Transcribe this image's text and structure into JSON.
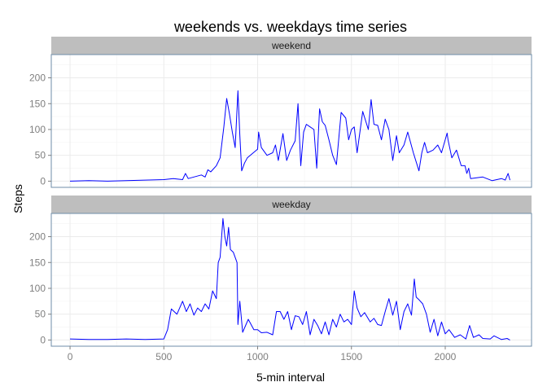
{
  "chart_data": {
    "type": "line",
    "title": "weekends vs. weekdays time series",
    "xlabel": "5-min interval",
    "ylabel": "Steps",
    "xlim": [
      -100,
      2460
    ],
    "ylim": [
      -12,
      245
    ],
    "x_ticks": [
      0,
      500,
      1000,
      1500,
      2000
    ],
    "y_ticks": [
      0,
      50,
      100,
      150,
      200
    ],
    "grid": true,
    "legend": "none",
    "colors": {
      "line": "#0000ff",
      "strip_bg": "#bebebe",
      "panel_border": "#6f8ea8",
      "grid": "#ebebeb"
    },
    "panels": [
      {
        "strip_label": "weekend",
        "series": {
          "x": [
            0,
            100,
            200,
            300,
            400,
            500,
            550,
            600,
            615,
            630,
            700,
            720,
            735,
            750,
            780,
            800,
            810,
            820,
            835,
            850,
            865,
            880,
            895,
            905,
            915,
            930,
            945,
            1000,
            1005,
            1020,
            1050,
            1080,
            1095,
            1110,
            1135,
            1155,
            1175,
            1200,
            1215,
            1230,
            1245,
            1260,
            1280,
            1300,
            1315,
            1330,
            1345,
            1360,
            1380,
            1400,
            1420,
            1445,
            1470,
            1485,
            1500,
            1515,
            1530,
            1560,
            1590,
            1605,
            1620,
            1640,
            1660,
            1680,
            1700,
            1720,
            1740,
            1755,
            1780,
            1800,
            1830,
            1860,
            1875,
            1890,
            1905,
            1935,
            1960,
            1980,
            2010,
            2015,
            2035,
            2060,
            2085,
            2105,
            2115,
            2125,
            2135,
            2200,
            2250,
            2300,
            2320,
            2335,
            2345
          ],
          "y": [
            0,
            1,
            0,
            1,
            2,
            3,
            5,
            3,
            15,
            5,
            12,
            8,
            22,
            18,
            30,
            45,
            75,
            105,
            160,
            130,
            95,
            65,
            175,
            90,
            20,
            35,
            45,
            62,
            95,
            65,
            50,
            55,
            70,
            40,
            92,
            40,
            60,
            78,
            150,
            30,
            95,
            110,
            105,
            100,
            25,
            140,
            115,
            108,
            80,
            50,
            32,
            133,
            122,
            80,
            100,
            105,
            55,
            135,
            100,
            158,
            110,
            108,
            80,
            120,
            100,
            40,
            88,
            55,
            70,
            95,
            55,
            20,
            55,
            75,
            55,
            60,
            70,
            55,
            93,
            80,
            45,
            60,
            30,
            30,
            15,
            25,
            5,
            8,
            1,
            5,
            2,
            15,
            2
          ]
        }
      },
      {
        "strip_label": "weekday",
        "series": {
          "x": [
            0,
            100,
            200,
            300,
            400,
            500,
            520,
            530,
            540,
            570,
            600,
            620,
            640,
            660,
            680,
            700,
            720,
            740,
            760,
            780,
            790,
            800,
            815,
            825,
            835,
            845,
            855,
            870,
            890,
            895,
            905,
            920,
            950,
            980,
            1000,
            1020,
            1050,
            1080,
            1100,
            1120,
            1140,
            1160,
            1180,
            1200,
            1220,
            1240,
            1260,
            1280,
            1300,
            1320,
            1340,
            1360,
            1380,
            1400,
            1420,
            1440,
            1460,
            1480,
            1500,
            1515,
            1530,
            1550,
            1570,
            1600,
            1620,
            1640,
            1660,
            1680,
            1700,
            1720,
            1740,
            1760,
            1780,
            1800,
            1820,
            1835,
            1845,
            1860,
            1880,
            1900,
            1920,
            1940,
            1960,
            1980,
            2000,
            2020,
            2050,
            2080,
            2110,
            2130,
            2150,
            2180,
            2200,
            2240,
            2260,
            2300,
            2330,
            2345
          ],
          "y": [
            2,
            1,
            1,
            2,
            1,
            2,
            20,
            40,
            60,
            50,
            75,
            55,
            70,
            48,
            62,
            55,
            70,
            60,
            95,
            80,
            150,
            160,
            235,
            200,
            182,
            218,
            175,
            170,
            150,
            30,
            75,
            15,
            40,
            20,
            20,
            14,
            15,
            10,
            55,
            55,
            40,
            55,
            20,
            47,
            45,
            30,
            55,
            10,
            40,
            28,
            12,
            35,
            10,
            40,
            25,
            50,
            35,
            40,
            30,
            95,
            62,
            45,
            53,
            35,
            42,
            30,
            28,
            55,
            80,
            48,
            75,
            20,
            55,
            70,
            48,
            118,
            83,
            78,
            70,
            50,
            15,
            40,
            8,
            35,
            12,
            20,
            5,
            10,
            2,
            28,
            5,
            10,
            3,
            2,
            8,
            1,
            3,
            0
          ]
        }
      }
    ]
  }
}
